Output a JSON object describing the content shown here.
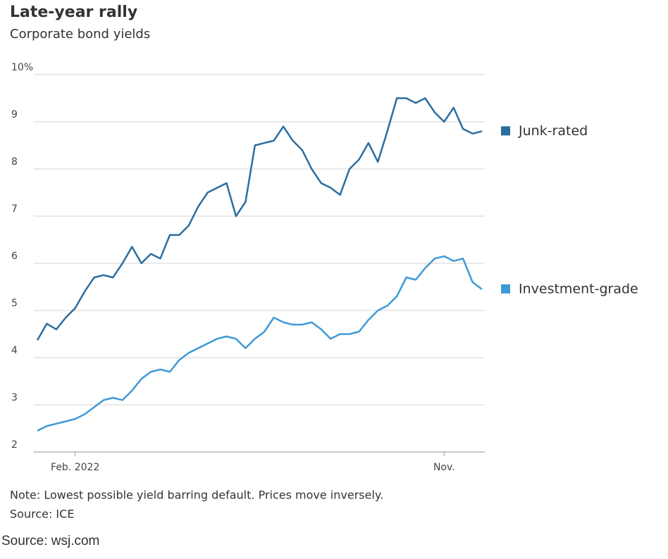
{
  "chart_data": {
    "type": "line",
    "title": "Late-year rally",
    "subtitle": "Corporate bond yields",
    "note": "Note: Lowest possible yield barring default. Prices move inversely.",
    "source": "Source: ICE",
    "credit": "Source: wsj.com",
    "categories": [
      null,
      null,
      null,
      null,
      "Feb. 2022",
      null,
      null,
      null,
      null,
      null,
      null,
      null,
      null,
      null,
      null,
      null,
      null,
      null,
      null,
      null,
      null,
      null,
      null,
      null,
      null,
      null,
      null,
      null,
      null,
      null,
      null,
      null,
      null,
      null,
      null,
      null,
      null,
      null,
      null,
      null,
      null,
      null,
      null,
      "Nov.",
      null,
      null,
      null,
      null
    ],
    "series": [
      {
        "name": "Junk-rated",
        "color": "#2b6e9e",
        "values": [
          4.37,
          4.72,
          4.6,
          4.85,
          5.05,
          5.4,
          5.7,
          5.75,
          5.7,
          6.0,
          6.35,
          6.0,
          6.2,
          6.1,
          6.6,
          6.6,
          6.8,
          7.2,
          7.5,
          7.6,
          7.7,
          7.0,
          7.3,
          8.5,
          8.55,
          8.6,
          8.9,
          8.6,
          8.4,
          8.0,
          7.7,
          7.6,
          7.45,
          8.0,
          8.2,
          8.55,
          8.15,
          8.8,
          9.5,
          9.5,
          9.4,
          9.5,
          9.2,
          9.0,
          9.3,
          8.85,
          8.75,
          8.8
        ]
      },
      {
        "name": "Investment-grade",
        "color": "#3d9ad6",
        "values": [
          2.45,
          2.55,
          2.6,
          2.65,
          2.7,
          2.8,
          2.95,
          3.1,
          3.15,
          3.1,
          3.3,
          3.55,
          3.7,
          3.75,
          3.7,
          3.95,
          4.1,
          4.2,
          4.3,
          4.4,
          4.45,
          4.4,
          4.2,
          4.4,
          4.55,
          4.85,
          4.75,
          4.7,
          4.7,
          4.75,
          4.6,
          4.4,
          4.5,
          4.5,
          4.55,
          4.8,
          5.0,
          5.1,
          5.3,
          5.7,
          5.65,
          5.9,
          6.1,
          6.15,
          6.05,
          6.1,
          5.6,
          5.45
        ]
      }
    ],
    "ylim": [
      2,
      10
    ],
    "yticks": [
      2,
      3,
      4,
      5,
      6,
      7,
      8,
      9,
      {
        "value": 10,
        "label": "10%"
      }
    ],
    "grid": true
  }
}
